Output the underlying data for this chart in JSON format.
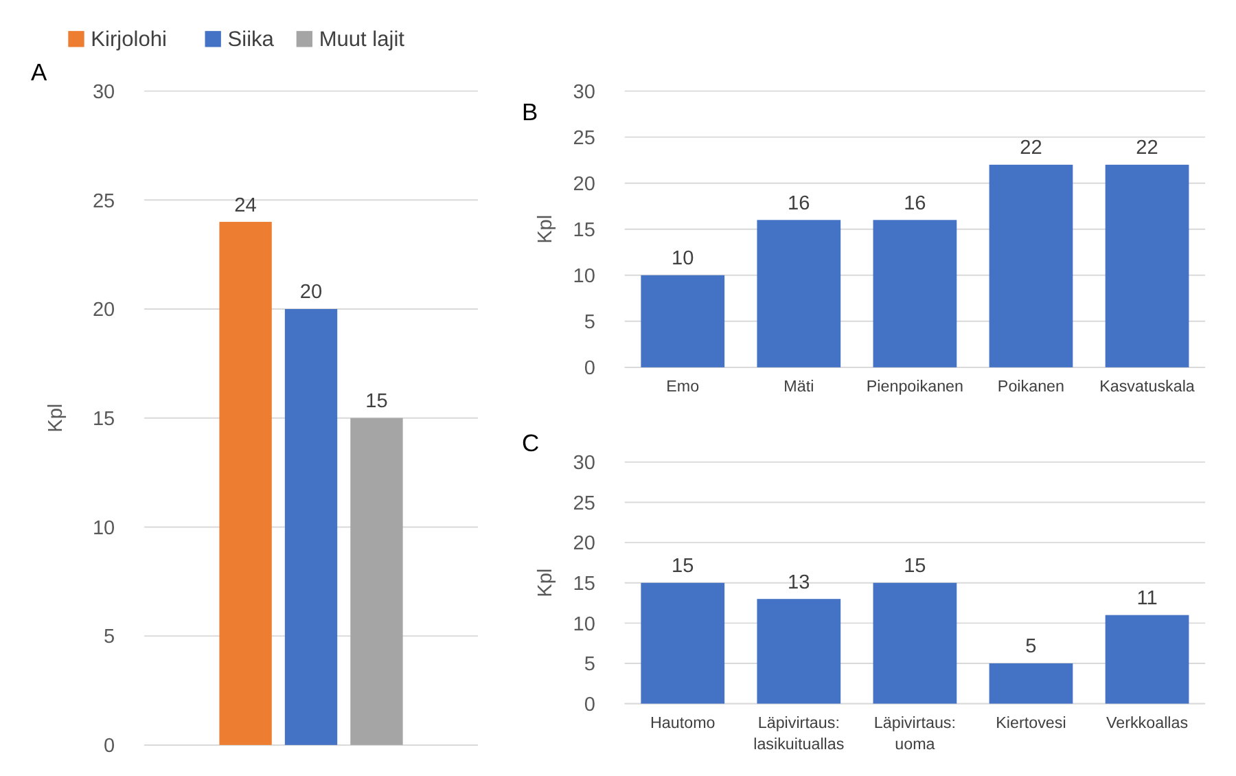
{
  "chart_data": [
    {
      "type": "bar",
      "title": "A",
      "ylabel": "Kpl",
      "categories": [
        null
      ],
      "series": [
        {
          "name": "Kirjolohi",
          "color": "#ed7d31",
          "values": [
            24
          ]
        },
        {
          "name": "Siika",
          "color": "#4472c4",
          "values": [
            20
          ]
        },
        {
          "name": "Muut lajit",
          "color": "#a5a5a5",
          "values": [
            15
          ]
        }
      ],
      "ylim": [
        0,
        30
      ],
      "yticks": [
        0,
        5,
        10,
        15,
        20,
        25,
        30
      ],
      "grid": "y",
      "legend": "top",
      "data_labels": true
    },
    {
      "type": "bar",
      "title": "B",
      "ylabel": "Kpl",
      "categories": [
        "Emo",
        "Mäti",
        "Pienpoikanen",
        "Poikanen",
        "Kasvatuskala"
      ],
      "series": [
        {
          "color": "#4472c4",
          "values": [
            10,
            16,
            16,
            22,
            22
          ]
        }
      ],
      "ylim": [
        0,
        30
      ],
      "yticks": [
        0,
        5,
        10,
        15,
        20,
        25,
        30
      ],
      "grid": "y",
      "data_labels": true
    },
    {
      "type": "bar",
      "title": "C",
      "ylabel": "Kpl",
      "categories": [
        "Hautomo",
        "Läpivirtaus: lasikuituallas",
        "Läpivirtaus: uoma",
        "Kiertovesi",
        "Verkkoallas"
      ],
      "series": [
        {
          "color": "#4472c4",
          "values": [
            15,
            13,
            15,
            5,
            11
          ]
        }
      ],
      "ylim": [
        0,
        30
      ],
      "yticks": [
        0,
        5,
        10,
        15,
        20,
        25,
        30
      ],
      "grid": "y",
      "data_labels": true
    }
  ]
}
